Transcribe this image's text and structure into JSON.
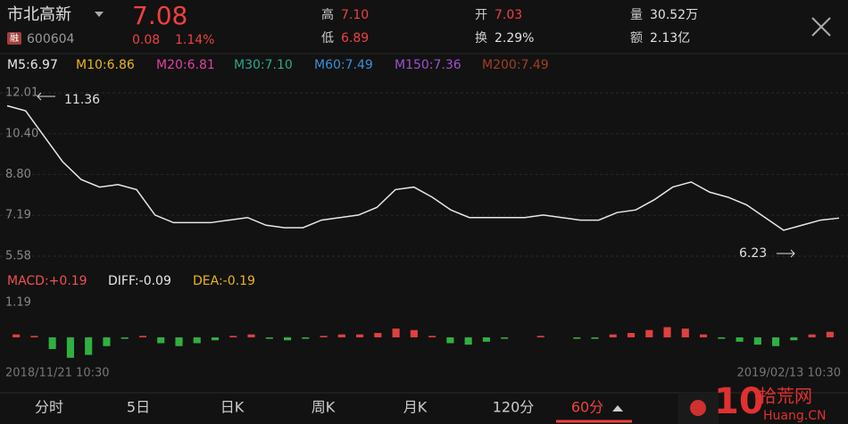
{
  "header": {
    "name": "市北高新",
    "badge": "融",
    "code": "600604",
    "price": "7.08",
    "change": "0.08",
    "pct": "1.14%",
    "stats": [
      {
        "label": "高",
        "value": "7.10",
        "color": "#f04040"
      },
      {
        "label": "开",
        "value": "7.03",
        "color": "#f04040"
      },
      {
        "label": "量",
        "value": "30.52万",
        "color": "#e0e0e0"
      },
      {
        "label": "低",
        "value": "6.89",
        "color": "#f04040"
      },
      {
        "label": "换",
        "value": "2.29%",
        "color": "#e0e0e0"
      },
      {
        "label": "额",
        "value": "2.13亿",
        "color": "#e0e0e0"
      }
    ]
  },
  "ma_legend": [
    {
      "text": "M5:6.97",
      "color": "#e8e8e8"
    },
    {
      "text": "M10:6.86",
      "color": "#e8b71c"
    },
    {
      "text": "M20:6.81",
      "color": "#e040a0"
    },
    {
      "text": "M30:7.10",
      "color": "#2aa88a"
    },
    {
      "text": "M60:7.49",
      "color": "#3a8fd8"
    },
    {
      "text": "M150:7.36",
      "color": "#a050d0"
    },
    {
      "text": "M200:7.49",
      "color": "#a04020"
    }
  ],
  "price_chart": {
    "type": "line",
    "color": "#e8e8e8",
    "ylim": [
      5.58,
      12.01
    ],
    "yticks": [
      12.01,
      {
        "value": 10.4,
        "label": "10.40"
      },
      {
        "value": 8.8,
        "label": "8.80"
      },
      7.19,
      5.58
    ],
    "high_label": "11.36",
    "low_label": "6.23",
    "values": [
      11.5,
      11.3,
      10.3,
      9.3,
      8.6,
      8.3,
      8.4,
      8.2,
      7.2,
      6.9,
      6.9,
      6.9,
      7.0,
      7.1,
      6.8,
      6.7,
      6.7,
      7.0,
      7.1,
      7.2,
      7.5,
      8.2,
      8.3,
      7.9,
      7.4,
      7.1,
      7.1,
      7.1,
      7.1,
      7.2,
      7.1,
      7.0,
      7.0,
      7.3,
      7.4,
      7.8,
      8.3,
      8.5,
      8.1,
      7.9,
      7.6,
      7.1,
      6.6,
      6.8,
      7.0,
      7.08
    ]
  },
  "macd_chart": {
    "type": "bar",
    "labels": [
      {
        "text": "MACD:+0.19",
        "color": "#f05050"
      },
      {
        "text": "DIFF:-0.09",
        "color": "#e8e8e8"
      },
      {
        "text": "DEA:-0.19",
        "color": "#e8b71c"
      }
    ],
    "ylim": [
      -0.98,
      1.19
    ],
    "yticks": [
      1.19
    ],
    "values": [
      0.1,
      0.05,
      -0.4,
      -0.7,
      -0.6,
      -0.3,
      -0.05,
      0.05,
      -0.2,
      -0.3,
      -0.2,
      -0.1,
      0.05,
      0.1,
      -0.05,
      -0.1,
      -0.05,
      0.05,
      0.1,
      0.1,
      0.15,
      0.3,
      0.25,
      0.05,
      -0.2,
      -0.25,
      -0.15,
      -0.05,
      0.0,
      0.05,
      0.0,
      -0.05,
      -0.05,
      0.1,
      0.15,
      0.25,
      0.35,
      0.3,
      0.1,
      -0.05,
      -0.15,
      -0.25,
      -0.3,
      -0.1,
      0.1,
      0.19
    ]
  },
  "dates": [
    "2018/11/21 10:30",
    "2019/02/13 10:30"
  ],
  "tabs": [
    "分时",
    "5日",
    "日K",
    "周K",
    "月K",
    "120分",
    "60分"
  ],
  "active_tab": 6,
  "watermark": {
    "number": "10",
    "site": "拾荒网",
    "url": "Huang.CN"
  }
}
